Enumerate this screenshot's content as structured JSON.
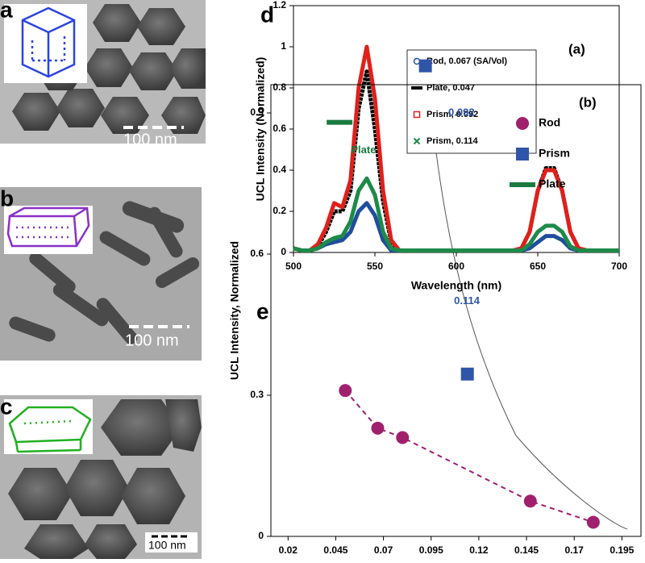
{
  "panels": [
    {
      "label": "a",
      "scale_bar": "100 nm"
    },
    {
      "label": "b",
      "scale_bar": "100 nm"
    },
    {
      "label": "c",
      "scale_bar": "100 nm"
    }
  ],
  "chart_data": [
    {
      "type": "line",
      "panel_label": "d",
      "annotation": "(a)",
      "x_label": "Wavelength (nm)",
      "y_label": "UCL Intensity (Normalized)",
      "x": [
        500,
        505,
        510,
        515,
        520,
        525,
        530,
        535,
        540,
        545,
        550,
        555,
        560,
        565,
        570,
        575,
        580,
        585,
        590,
        595,
        600,
        605,
        610,
        615,
        620,
        625,
        630,
        635,
        640,
        645,
        650,
        655,
        660,
        665,
        670,
        675,
        680,
        685,
        690,
        695,
        700
      ],
      "xlim": [
        500,
        700
      ],
      "xticks": [
        500,
        550,
        600,
        650,
        700
      ],
      "ylim": [
        0,
        1.2
      ],
      "yticks": [
        0,
        0.2,
        0.4,
        0.6,
        0.8,
        1,
        1.2
      ],
      "series": [
        {
          "name": "Rod, 0.067 (SA/Vol)",
          "color": "#1f4e9c",
          "marker": "circle",
          "values": [
            0.02,
            0.01,
            0.01,
            0.02,
            0.04,
            0.05,
            0.06,
            0.1,
            0.2,
            0.24,
            0.18,
            0.06,
            0.01,
            0.01,
            0.01,
            0.01,
            0.01,
            0.01,
            0.01,
            0.01,
            0.01,
            0.01,
            0.01,
            0.01,
            0.01,
            0.01,
            0.01,
            0.01,
            0.01,
            0.02,
            0.05,
            0.08,
            0.08,
            0.06,
            0.02,
            0.01,
            0.01,
            0.01,
            0.01,
            0.01,
            0.01
          ]
        },
        {
          "name": "Plate, 0.047",
          "color": "#000000",
          "marker": "dash",
          "values": [
            0.02,
            0.01,
            0.01,
            0.03,
            0.1,
            0.2,
            0.2,
            0.3,
            0.7,
            0.88,
            0.6,
            0.25,
            0.05,
            0.01,
            0.01,
            0.01,
            0.01,
            0.01,
            0.01,
            0.01,
            0.01,
            0.01,
            0.01,
            0.01,
            0.01,
            0.01,
            0.01,
            0.01,
            0.02,
            0.1,
            0.3,
            0.41,
            0.41,
            0.3,
            0.1,
            0.02,
            0.01,
            0.01,
            0.01,
            0.01,
            0.01
          ]
        },
        {
          "name": "Prism, 0.092",
          "color": "#e0201b",
          "marker": "square",
          "values": [
            0.02,
            0.01,
            0.01,
            0.04,
            0.12,
            0.24,
            0.22,
            0.35,
            0.8,
            1.0,
            0.75,
            0.3,
            0.06,
            0.01,
            0.01,
            0.01,
            0.01,
            0.01,
            0.01,
            0.01,
            0.01,
            0.01,
            0.01,
            0.01,
            0.01,
            0.01,
            0.01,
            0.01,
            0.02,
            0.1,
            0.3,
            0.4,
            0.4,
            0.3,
            0.1,
            0.02,
            0.01,
            0.01,
            0.01,
            0.01,
            0.01
          ]
        },
        {
          "name": "Prism, 0.114",
          "color": "#1e8a4a",
          "marker": "x",
          "values": [
            0.02,
            0.01,
            0.01,
            0.02,
            0.05,
            0.07,
            0.08,
            0.15,
            0.3,
            0.36,
            0.28,
            0.1,
            0.02,
            0.01,
            0.01,
            0.01,
            0.01,
            0.01,
            0.01,
            0.01,
            0.01,
            0.01,
            0.01,
            0.01,
            0.01,
            0.01,
            0.01,
            0.01,
            0.01,
            0.04,
            0.1,
            0.13,
            0.13,
            0.1,
            0.03,
            0.01,
            0.01,
            0.01,
            0.01,
            0.01,
            0.01
          ]
        }
      ]
    },
    {
      "type": "scatter",
      "panel_label": "e",
      "annotation": "(b)",
      "y_label": "UCL Intensity, Normalized",
      "xlim": [
        0.011,
        0.205
      ],
      "xticks": [
        0.02,
        0.045,
        0.07,
        0.095,
        0.12,
        0.145,
        0.17,
        0.195
      ],
      "ylim": [
        0,
        0.96
      ],
      "yticks": [
        0,
        0.3,
        0.6,
        0.9
      ],
      "series": [
        {
          "name": "Rod",
          "color": "#a0206e",
          "marker": "circle",
          "x": [
            0.05,
            0.067,
            0.08,
            0.147,
            0.18
          ],
          "values": [
            0.31,
            0.23,
            0.21,
            0.075,
            0.03
          ]
        },
        {
          "name": "Prism",
          "color": "#2e55a8",
          "marker": "square",
          "x": [
            0.092,
            0.114
          ],
          "values": [
            1.0,
            0.345
          ]
        },
        {
          "name": "Plate",
          "color": "#1a7a40",
          "marker": "dash",
          "x": [
            0.047
          ],
          "values": [
            0.88
          ]
        }
      ],
      "point_labels": [
        {
          "text": "Plate",
          "color": "#1a7a40",
          "x": 0.053,
          "y": 0.82
        },
        {
          "text": "0.092",
          "color": "#2e55a8",
          "x": 0.104,
          "y": 0.9
        },
        {
          "text": "0.114",
          "color": "#2e55a8",
          "x": 0.107,
          "y": 0.5
        }
      ]
    }
  ]
}
